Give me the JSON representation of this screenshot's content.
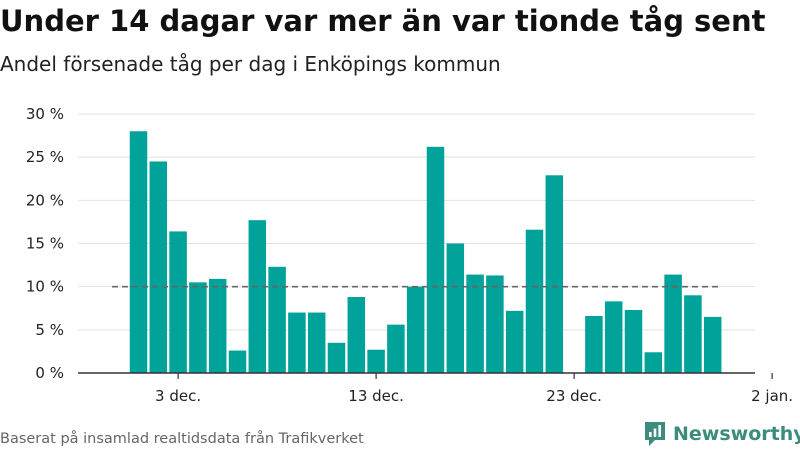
{
  "chart_data": {
    "type": "bar",
    "title": "Under 14 dagar var mer än var tionde tåg sent",
    "subtitle": "Andel försenade tåg per dag i Enköpings kommun",
    "x": [
      1,
      2,
      3,
      4,
      5,
      6,
      7,
      8,
      9,
      10,
      11,
      12,
      13,
      14,
      15,
      16,
      17,
      18,
      19,
      20,
      21,
      22,
      23,
      24,
      25,
      26,
      27,
      28,
      29,
      30,
      31
    ],
    "values": [
      28.0,
      24.5,
      16.4,
      10.5,
      10.9,
      2.6,
      17.7,
      12.3,
      7.0,
      7.0,
      3.5,
      8.8,
      2.7,
      5.6,
      10.0,
      26.2,
      15.0,
      11.4,
      11.3,
      7.2,
      16.6,
      22.9,
      null,
      6.6,
      8.3,
      7.3,
      2.4,
      11.4,
      9.0,
      6.5,
      null
    ],
    "y_ticks": [
      "0 %",
      "5 %",
      "10 %",
      "15 %",
      "20 %",
      "25 %",
      "30 %"
    ],
    "ylim": [
      0,
      30
    ],
    "x_ticks": [
      {
        "day": 3,
        "label": "3 dec."
      },
      {
        "day": 13,
        "label": "13 dec."
      },
      {
        "day": 23,
        "label": "23 dec."
      },
      {
        "day": 33,
        "label": "2 jan."
      }
    ],
    "reference_line": 10,
    "grid": true,
    "colors": {
      "bar": "#00a29a",
      "grid": "#e2e2e2",
      "reference": "#666666"
    }
  },
  "source": "Baserat på insamlad realtidsdata från Trafikverket",
  "brand": {
    "name": "Newsworthy",
    "color": "#3b8c7d",
    "icon": "newsworthy-logo-icon"
  }
}
